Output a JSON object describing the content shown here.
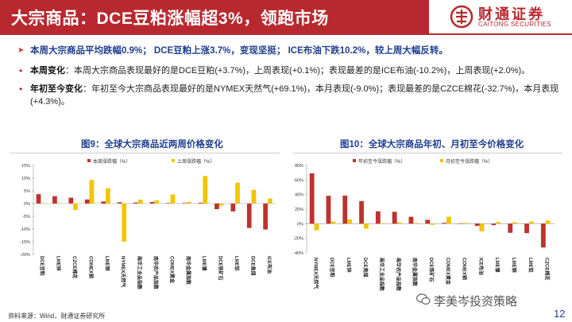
{
  "header": {
    "title": "大宗商品：DCE豆粕涨幅超3%，领跑市场",
    "logo_cn": "财通证券",
    "logo_en": "CAITONG SECURITIES"
  },
  "bullets": {
    "main": "本周大宗商品平均跌幅0.9%； DCE豆粕上涨3.7%，变现坚挺； ICE布油下跌10.2%，较上周大幅反转。",
    "weekly_label": "本周变化",
    "weekly_text": "：本周大宗商品表现最好的是DCE豆粕(+3.7%)，上周表现(+0.1%)；表现最差的是ICE布油(-10.2%)，上周表现(+2.0%)。",
    "ytd_label": "年初至今变化",
    "ytd_text": "：年初至今大宗商品表现最好的是NYMEX天然气(+69.1%)，本月表现(-9.0%)；表现最差的是CZCE棉花(-32.7%)，本月表现(+4.3%)。"
  },
  "colors": {
    "brand_red": "#b8292f",
    "title_blue": "#1f3f8f",
    "series_red": "#c0312f",
    "series_yellow": "#f5c400"
  },
  "footer": {
    "source": "资料来源：Wind，财通证券研究所",
    "brand": "李美岑投资策略",
    "page": "12"
  },
  "chart_data": [
    {
      "type": "bar",
      "title": "图9：全球大宗商品近两周价格变化",
      "categories": [
        "DCE豆粕",
        "LME锌",
        "CZCE棉花",
        "COMEX铜",
        "LME铜",
        "NYMEX天然气",
        "南华工业品指数",
        "南华农产品指数",
        "COMEX黄金",
        "南华金属指数",
        "LME镍",
        "DCE铁矿石",
        "LME铝",
        "DCE焦煤",
        "ICE布油"
      ],
      "series": [
        {
          "name": "本周涨跌幅（%）",
          "values": [
            3.7,
            2.9,
            2.3,
            1.6,
            0.8,
            0.5,
            0.4,
            0.6,
            0.2,
            0.2,
            0.3,
            -2.2,
            -3.1,
            -9.6,
            -10.2
          ]
        },
        {
          "name": "上周涨跌幅（%）",
          "values": [
            0.1,
            0.2,
            -2.5,
            9.3,
            6.0,
            -15.0,
            1.5,
            1.2,
            3.6,
            0.6,
            10.8,
            -0.8,
            8.2,
            5.4,
            2.0
          ]
        }
      ],
      "ylim": [
        -20,
        15
      ],
      "yticks": [
        "15%",
        "10%",
        "5%",
        "0%",
        "-5%",
        "-10%",
        "-15%",
        "-20%"
      ],
      "legend": "top-center"
    },
    {
      "type": "bar",
      "title": "图10：全球大宗商品年初、月初至今价格变化",
      "categories": [
        "NYMEX天然气",
        "DCE豆粕",
        "LME锌",
        "DCE焦煤",
        "南华工业品指数",
        "南华农产品指数",
        "南华金属指数",
        "DCE铁矿石",
        "COMEX黄金",
        "COMEX铜",
        "ICE布油",
        "LME镍",
        "LME铜",
        "LME铝",
        "CZCE棉花"
      ],
      "series": [
        {
          "name": "年初至今涨跌幅（%）",
          "values": [
            69.1,
            38.3,
            38.5,
            31.0,
            17.0,
            16.3,
            9.5,
            5.3,
            1.2,
            0.3,
            -3.0,
            -2.0,
            -12.5,
            -13.0,
            -32.7
          ]
        },
        {
          "name": "月初至今涨跌幅（%）",
          "values": [
            -9.0,
            3.0,
            5.8,
            -6.8,
            0.7,
            1.8,
            1.0,
            -1.5,
            9.5,
            1.1,
            -10.5,
            2.2,
            2.0,
            3.0,
            4.3
          ]
        }
      ],
      "ylim": [
        -40,
        80
      ],
      "yticks": [
        "80%",
        "60%",
        "40%",
        "20%",
        "0%",
        "-20%",
        "-40%"
      ],
      "legend": "top-center"
    }
  ]
}
